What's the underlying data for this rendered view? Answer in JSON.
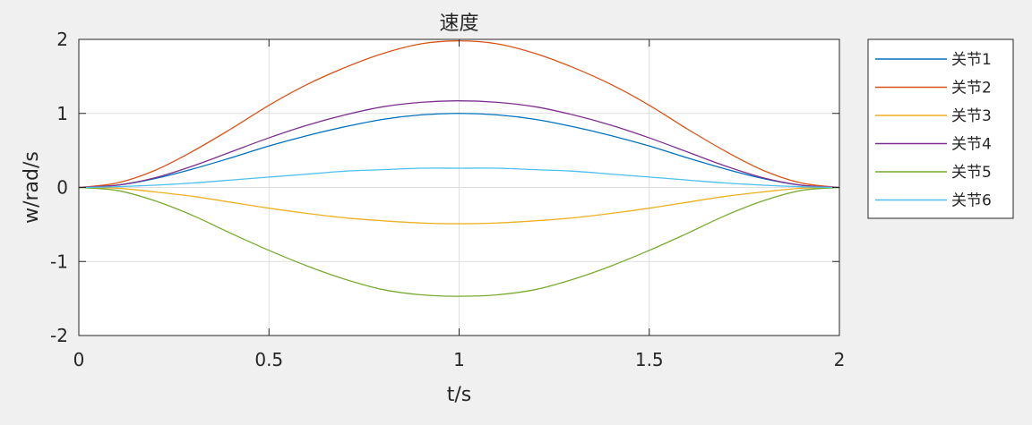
{
  "chart_data": {
    "type": "line",
    "title": "速度",
    "xlabel": "t/s",
    "ylabel": "w/rad/s",
    "xlim": [
      0,
      2
    ],
    "ylim": [
      -2,
      2
    ],
    "xticks": [
      0,
      0.5,
      1,
      1.5,
      2
    ],
    "yticks": [
      -2,
      -1,
      0,
      1,
      2
    ],
    "xtick_labels": [
      "0",
      "0.5",
      "1",
      "1.5",
      "2"
    ],
    "ytick_labels": [
      "-2",
      "-1",
      "0",
      "1",
      "2"
    ],
    "grid": true,
    "legend_position": "outside-top-right",
    "x": [
      0,
      0.1,
      0.2,
      0.3,
      0.4,
      0.5,
      0.6,
      0.7,
      0.8,
      0.9,
      1.0,
      1.1,
      1.2,
      1.3,
      1.4,
      1.5,
      1.6,
      1.7,
      1.8,
      1.9,
      2.0
    ],
    "series": [
      {
        "name": "关节1",
        "color": "#0072BD",
        "values": [
          0,
          0.03,
          0.12,
          0.25,
          0.4,
          0.56,
          0.7,
          0.82,
          0.92,
          0.98,
          1.0,
          0.98,
          0.92,
          0.82,
          0.7,
          0.56,
          0.4,
          0.25,
          0.12,
          0.03,
          0
        ]
      },
      {
        "name": "关节2",
        "color": "#D95319",
        "values": [
          0,
          0.06,
          0.23,
          0.49,
          0.79,
          1.11,
          1.39,
          1.62,
          1.81,
          1.94,
          1.98,
          1.94,
          1.81,
          1.62,
          1.39,
          1.11,
          0.79,
          0.49,
          0.23,
          0.06,
          0
        ]
      },
      {
        "name": "关节3",
        "color": "#EDB120",
        "values": [
          0,
          -0.01,
          -0.06,
          -0.12,
          -0.2,
          -0.28,
          -0.35,
          -0.41,
          -0.45,
          -0.48,
          -0.49,
          -0.48,
          -0.45,
          -0.41,
          -0.35,
          -0.28,
          -0.2,
          -0.12,
          -0.06,
          -0.01,
          0
        ]
      },
      {
        "name": "关节4",
        "color": "#7E2F8E",
        "values": [
          0,
          0.03,
          0.13,
          0.29,
          0.48,
          0.67,
          0.84,
          0.98,
          1.09,
          1.15,
          1.17,
          1.15,
          1.09,
          0.98,
          0.84,
          0.67,
          0.48,
          0.29,
          0.13,
          0.03,
          0
        ]
      },
      {
        "name": "关节5",
        "color": "#77AC30",
        "values": [
          0,
          -0.04,
          -0.18,
          -0.38,
          -0.62,
          -0.85,
          -1.06,
          -1.24,
          -1.38,
          -1.45,
          -1.47,
          -1.45,
          -1.38,
          -1.24,
          -1.06,
          -0.85,
          -0.62,
          -0.38,
          -0.18,
          -0.04,
          0
        ]
      },
      {
        "name": "关节6",
        "color": "#4DBEEE",
        "values": [
          0,
          0.01,
          0.03,
          0.06,
          0.1,
          0.14,
          0.18,
          0.22,
          0.24,
          0.26,
          0.26,
          0.26,
          0.24,
          0.22,
          0.18,
          0.14,
          0.1,
          0.06,
          0.03,
          0.01,
          0
        ]
      }
    ]
  }
}
